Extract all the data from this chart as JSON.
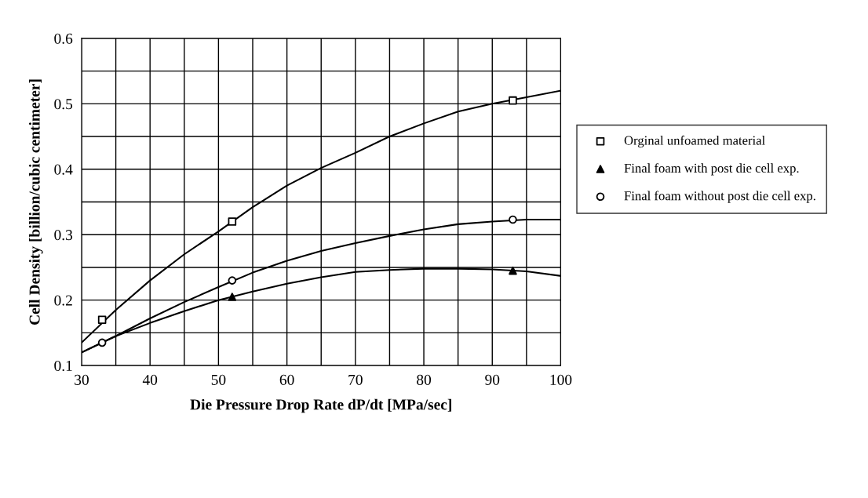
{
  "chart_data": {
    "type": "scatter",
    "xlabel": "Die Pressure Drop Rate dP/dt [MPa/sec]",
    "ylabel": "Cell Density [billion/cubic centimeter]",
    "xlim": [
      30,
      100
    ],
    "xticks": [
      30,
      {
        "value": 35,
        "label": null
      },
      40,
      {
        "value": 45,
        "label": null
      },
      50,
      {
        "value": 55,
        "label": null
      },
      60,
      {
        "value": 65,
        "label": null
      },
      70,
      {
        "value": 75,
        "label": null
      },
      80,
      {
        "value": 85,
        "label": null
      },
      90,
      {
        "value": 95,
        "label": null
      },
      100
    ],
    "ylim": [
      0.1,
      0.6
    ],
    "yticks": [
      0.1,
      {
        "value": 0.15,
        "label": null
      },
      0.2,
      {
        "value": 0.25,
        "label": null
      },
      0.3,
      {
        "value": 0.35,
        "label": null
      },
      0.4,
      {
        "value": 0.45,
        "label": null
      },
      0.5,
      {
        "value": 0.55,
        "label": null
      },
      0.6
    ],
    "grid": true,
    "legend": "right",
    "series": [
      {
        "name": "Orginal unfoamed material",
        "color": "#000000",
        "marker": "square",
        "x": [
          33,
          52,
          93
        ],
        "values": [
          0.17,
          0.32,
          0.505
        ]
      },
      {
        "name": "Final foam with post die cell exp.",
        "color": "#000000",
        "marker": "triangle",
        "x": [
          52,
          93
        ],
        "values": [
          0.205,
          0.245
        ]
      },
      {
        "name": "Final foam without post die cell exp.",
        "color": "#000000",
        "marker": "circle",
        "x": [
          33,
          52,
          93
        ],
        "values": [
          0.135,
          0.23,
          0.323
        ]
      },
      {
        "type": "line",
        "color": "#000000",
        "marker": "none",
        "line_style": "solid",
        "x": [
          30,
          35,
          40,
          45,
          50,
          55,
          60,
          65,
          70,
          75,
          80,
          85,
          90,
          95,
          100
        ],
        "values": [
          0.135,
          0.185,
          0.23,
          0.27,
          0.305,
          0.342,
          0.375,
          0.402,
          0.425,
          0.45,
          0.47,
          0.488,
          0.5,
          0.51,
          0.52
        ]
      },
      {
        "type": "line",
        "color": "#000000",
        "marker": "none",
        "line_style": "solid",
        "x": [
          30,
          35,
          40,
          45,
          50,
          55,
          60,
          65,
          70,
          75,
          80,
          85,
          90,
          95,
          100
        ],
        "values": [
          0.12,
          0.145,
          0.172,
          0.197,
          0.22,
          0.242,
          0.26,
          0.275,
          0.287,
          0.298,
          0.308,
          0.316,
          0.32,
          0.323,
          0.323
        ]
      },
      {
        "type": "line",
        "color": "#000000",
        "marker": "none",
        "line_style": "solid",
        "x": [
          30,
          35,
          40,
          45,
          50,
          55,
          60,
          65,
          70,
          75,
          80,
          85,
          90,
          95,
          100
        ],
        "values": [
          0.12,
          0.145,
          0.165,
          0.183,
          0.2,
          0.213,
          0.225,
          0.235,
          0.243,
          0.246,
          0.248,
          0.248,
          0.247,
          0.244,
          0.237
        ]
      }
    ]
  }
}
